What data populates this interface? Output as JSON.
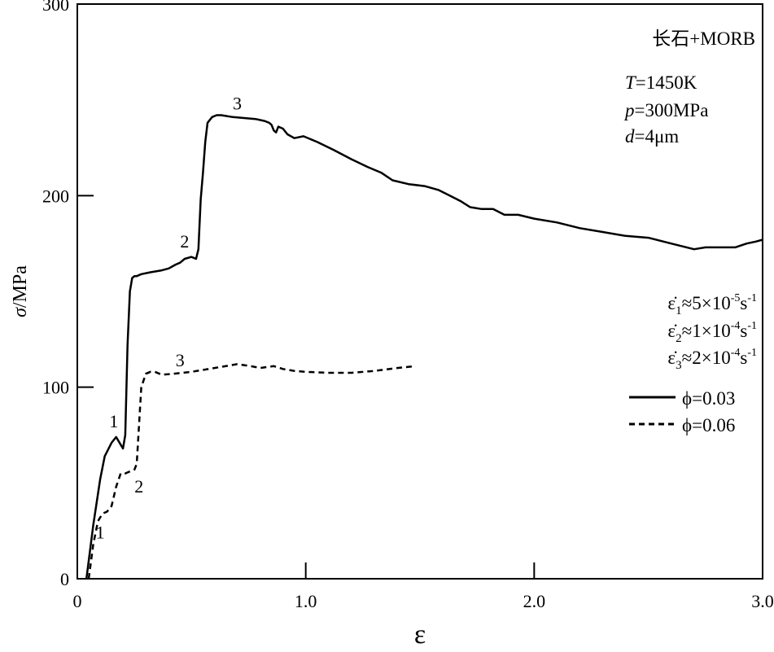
{
  "chart_data": {
    "type": "line",
    "title": "长石+MORB",
    "conditions": [
      {
        "var": "T",
        "rest": "=1450K"
      },
      {
        "var": "p",
        "rest": "=300MPa"
      },
      {
        "var": "d",
        "rest": "=4μm"
      }
    ],
    "strain_rates": [
      {
        "sub": "1",
        "rest": "≈5×10",
        "exp": "-5",
        "unit": "s",
        "unit_exp": "-1"
      },
      {
        "sub": "2",
        "rest": "≈1×10",
        "exp": "-4",
        "unit": "s",
        "unit_exp": "-1"
      },
      {
        "sub": "3",
        "rest": "≈2×10",
        "exp": "-4",
        "unit": "s",
        "unit_exp": "-1"
      }
    ],
    "xlabel": "ε",
    "ylabel_var": "σ",
    "ylabel_unit": "/MPa",
    "xlim": [
      0,
      3.0
    ],
    "ylim": [
      0,
      300
    ],
    "xticks": [
      0,
      1.0,
      2.0,
      3.0
    ],
    "xtick_labels": [
      "0",
      "1.0",
      "2.0",
      "3.0"
    ],
    "yticks": [
      0,
      100,
      200,
      300
    ],
    "ytick_labels": [
      "0",
      "100",
      "200",
      "300"
    ],
    "legend_position": "right",
    "series": [
      {
        "name": "ϕ=0.03",
        "style": "solid",
        "points": [
          [
            0.04,
            0
          ],
          [
            0.07,
            28
          ],
          [
            0.1,
            52
          ],
          [
            0.12,
            64
          ],
          [
            0.15,
            71
          ],
          [
            0.17,
            74
          ],
          [
            0.19,
            70
          ],
          [
            0.2,
            68
          ],
          [
            0.21,
            75
          ],
          [
            0.22,
            122
          ],
          [
            0.23,
            150
          ],
          [
            0.24,
            157
          ],
          [
            0.25,
            158
          ],
          [
            0.26,
            158
          ],
          [
            0.28,
            159
          ],
          [
            0.32,
            160
          ],
          [
            0.37,
            161
          ],
          [
            0.4,
            162
          ],
          [
            0.43,
            164
          ],
          [
            0.45,
            165
          ],
          [
            0.47,
            167
          ],
          [
            0.5,
            168
          ],
          [
            0.52,
            167
          ],
          [
            0.53,
            172
          ],
          [
            0.54,
            198
          ],
          [
            0.55,
            212
          ],
          [
            0.56,
            228
          ],
          [
            0.57,
            238
          ],
          [
            0.59,
            241
          ],
          [
            0.61,
            242
          ],
          [
            0.63,
            242
          ],
          [
            0.68,
            241
          ],
          [
            0.73,
            240.5
          ],
          [
            0.78,
            240
          ],
          [
            0.82,
            239
          ],
          [
            0.84,
            238
          ],
          [
            0.85,
            237
          ],
          [
            0.86,
            234
          ],
          [
            0.87,
            233
          ],
          [
            0.88,
            236
          ],
          [
            0.9,
            235
          ],
          [
            0.92,
            232
          ],
          [
            0.95,
            230
          ],
          [
            0.99,
            231
          ],
          [
            1.05,
            228
          ],
          [
            1.12,
            224
          ],
          [
            1.2,
            219
          ],
          [
            1.27,
            215
          ],
          [
            1.33,
            212
          ],
          [
            1.38,
            208
          ],
          [
            1.45,
            206
          ],
          [
            1.52,
            205
          ],
          [
            1.58,
            203
          ],
          [
            1.63,
            200
          ],
          [
            1.68,
            197
          ],
          [
            1.72,
            194
          ],
          [
            1.77,
            193
          ],
          [
            1.82,
            193
          ],
          [
            1.87,
            190
          ],
          [
            1.93,
            190
          ],
          [
            2.0,
            188
          ],
          [
            2.1,
            186
          ],
          [
            2.2,
            183
          ],
          [
            2.3,
            181
          ],
          [
            2.4,
            179
          ],
          [
            2.5,
            178
          ],
          [
            2.6,
            175
          ],
          [
            2.7,
            172
          ],
          [
            2.75,
            173
          ],
          [
            2.82,
            173
          ],
          [
            2.88,
            173
          ],
          [
            2.93,
            175
          ],
          [
            2.97,
            176
          ],
          [
            3.0,
            177
          ]
        ]
      },
      {
        "name": "ϕ=0.06",
        "style": "dashed",
        "points": [
          [
            0.05,
            0
          ],
          [
            0.07,
            18
          ],
          [
            0.09,
            30
          ],
          [
            0.11,
            34
          ],
          [
            0.13,
            35
          ],
          [
            0.15,
            38
          ],
          [
            0.17,
            48
          ],
          [
            0.19,
            55
          ],
          [
            0.21,
            55
          ],
          [
            0.23,
            56
          ],
          [
            0.25,
            57
          ],
          [
            0.26,
            60
          ],
          [
            0.27,
            80
          ],
          [
            0.28,
            100
          ],
          [
            0.3,
            107
          ],
          [
            0.32,
            108
          ],
          [
            0.34,
            108
          ],
          [
            0.37,
            106.5
          ],
          [
            0.42,
            107
          ],
          [
            0.5,
            108
          ],
          [
            0.6,
            110
          ],
          [
            0.7,
            112
          ],
          [
            0.76,
            111
          ],
          [
            0.8,
            110
          ],
          [
            0.86,
            111
          ],
          [
            0.9,
            109.5
          ],
          [
            0.95,
            108.5
          ],
          [
            1.0,
            108
          ],
          [
            1.1,
            107.5
          ],
          [
            1.2,
            107.5
          ],
          [
            1.3,
            108.5
          ],
          [
            1.4,
            110
          ],
          [
            1.48,
            111
          ]
        ]
      }
    ],
    "annotations": [
      {
        "text": "1",
        "x": 0.16,
        "y": 79
      },
      {
        "text": "2",
        "x": 0.47,
        "y": 173
      },
      {
        "text": "3",
        "x": 0.7,
        "y": 245
      },
      {
        "text": "1",
        "x": 0.1,
        "y": 21
      },
      {
        "text": "2",
        "x": 0.27,
        "y": 45
      },
      {
        "text": "3",
        "x": 0.45,
        "y": 111
      }
    ]
  }
}
